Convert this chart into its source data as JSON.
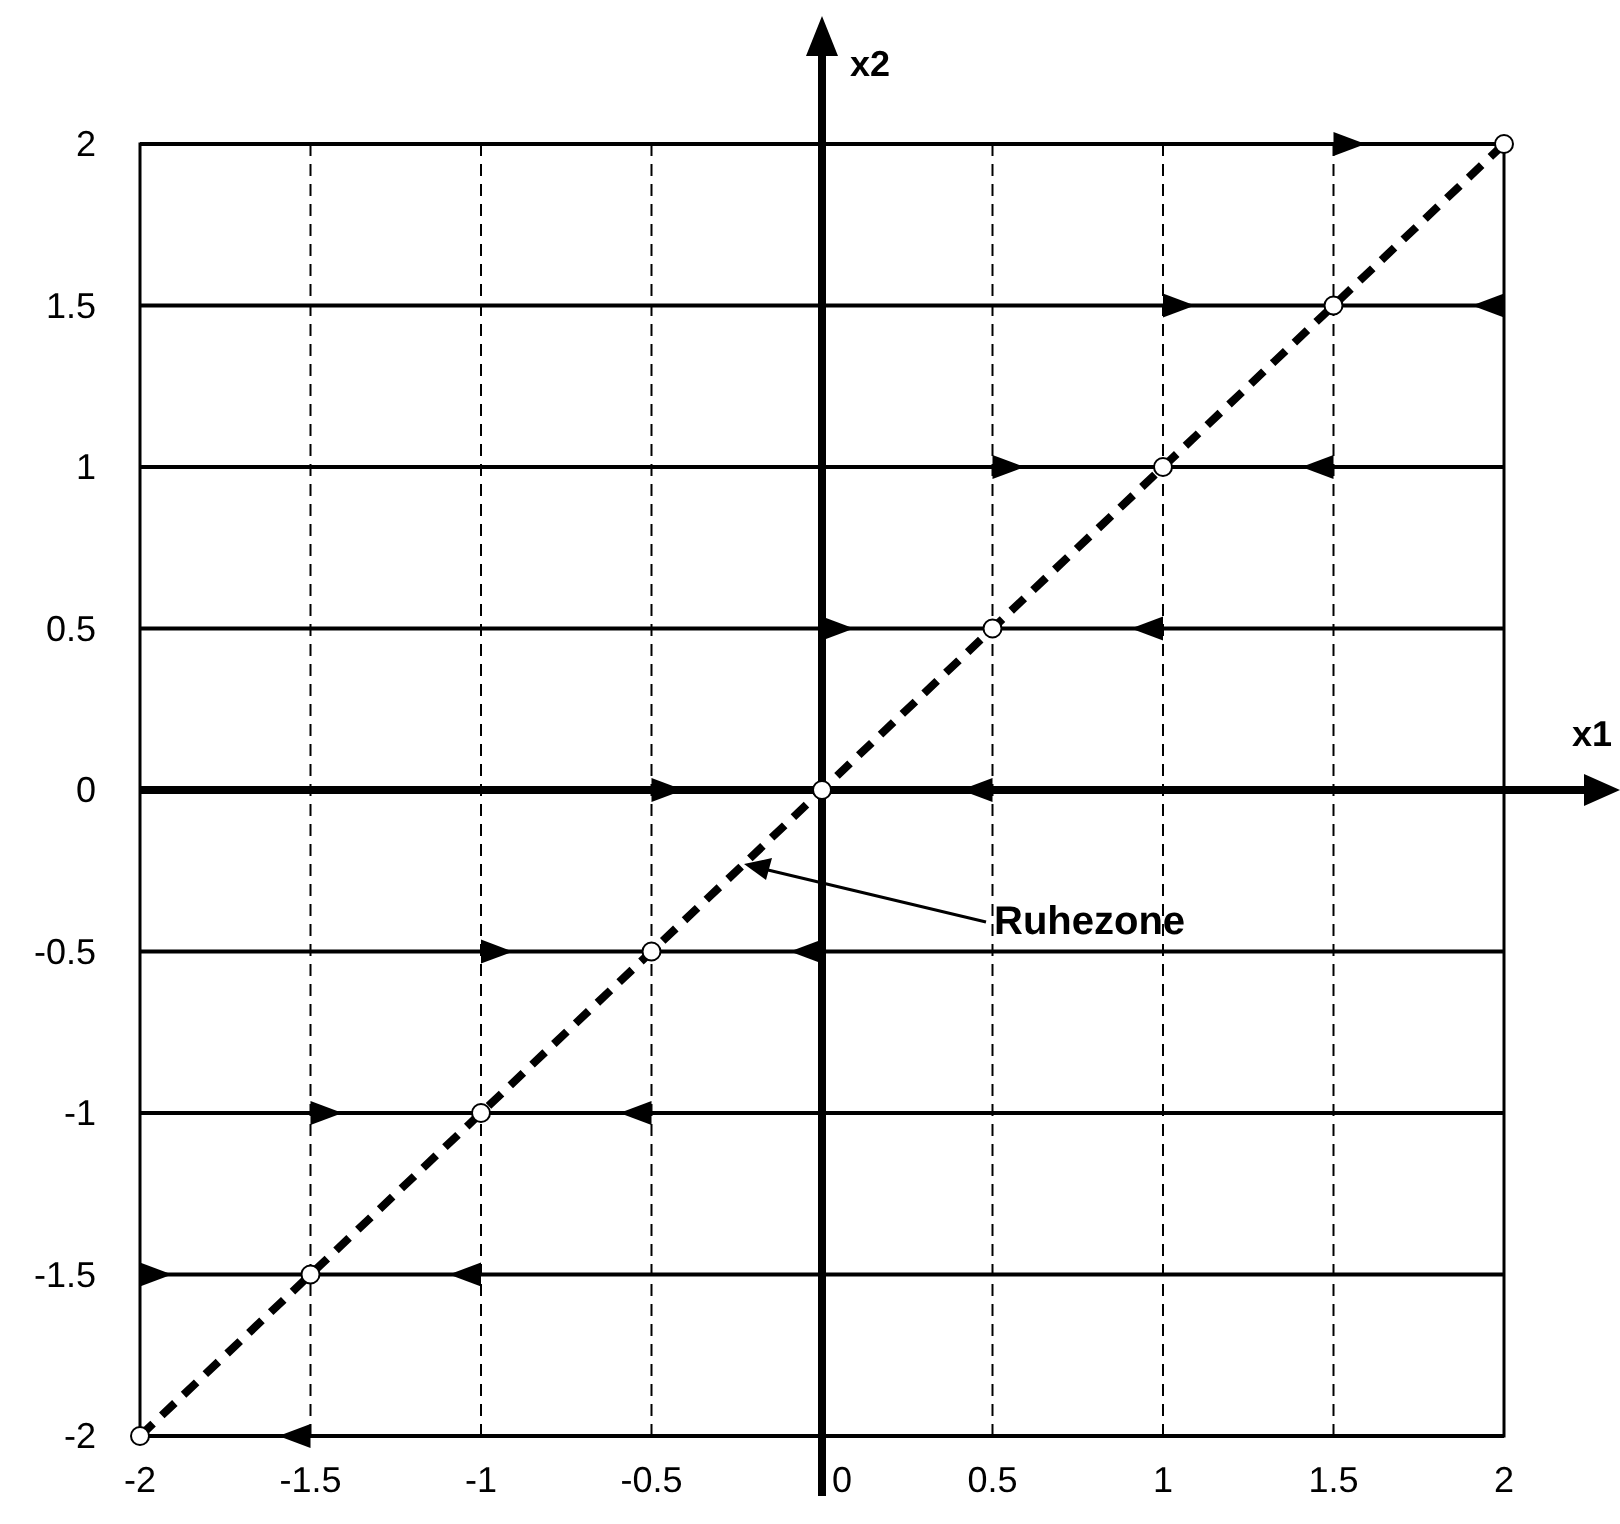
{
  "chart_data": {
    "type": "line",
    "xlabel": "x1",
    "ylabel": "x2",
    "x": [
      -2,
      -1.5,
      -1,
      -0.5,
      0,
      0.5,
      1,
      1.5,
      2
    ],
    "series": [
      {
        "color": "#000000",
        "values": [
          -2,
          -1.5,
          -1,
          -0.5,
          0,
          0.5,
          1,
          1.5,
          2
        ]
      }
    ],
    "xlim": [
      -2,
      2
    ],
    "ylim": [
      -2,
      2
    ],
    "xticks": [
      -2,
      -1.5,
      -1,
      -0.5,
      0,
      0.5,
      1,
      1.5,
      2
    ],
    "yticks": [
      -2,
      -1.5,
      -1,
      -0.5,
      0,
      0.5,
      1,
      1.5,
      2
    ],
    "grid": true,
    "marker": "circle",
    "line_style": "dashed",
    "annotations": [
      "Ruhezone"
    ]
  }
}
